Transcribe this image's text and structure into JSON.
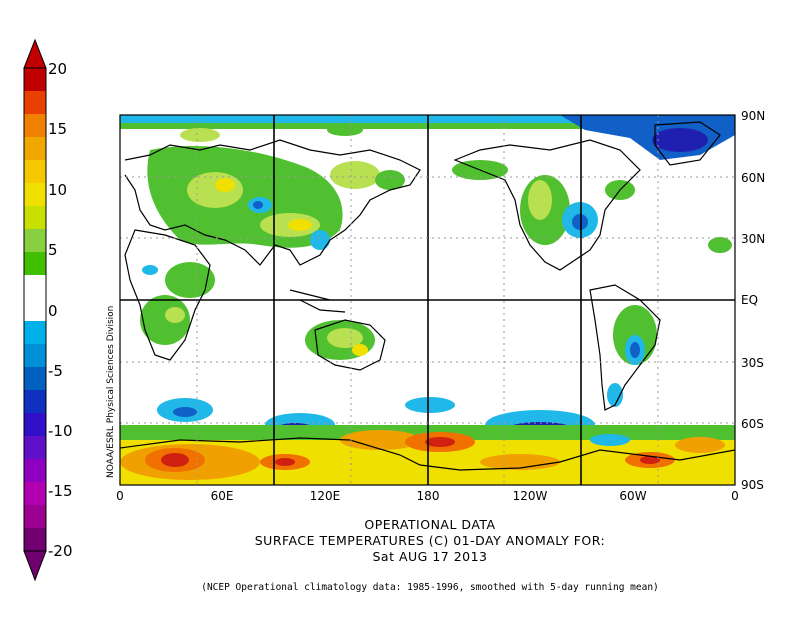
{
  "colorbar": {
    "labels": [
      "20",
      "15",
      "10",
      "5",
      "0",
      "-5",
      "-10",
      "-15",
      "-20"
    ],
    "colors": [
      "#c00000",
      "#e84000",
      "#f08000",
      "#f0a800",
      "#f5c800",
      "#f0e000",
      "#c8e000",
      "#88d040",
      "#40c000",
      "#ffffff",
      "#ffffff",
      "#00b0e8",
      "#0090d8",
      "#0060c0",
      "#1030c0",
      "#3010c8",
      "#6010c8",
      "#9000c0",
      "#b000b0",
      "#9c0090",
      "#700070"
    ]
  },
  "map": {
    "lat_labels": [
      "90N",
      "60N",
      "30N",
      "EQ",
      "30S",
      "60S",
      "90S"
    ],
    "lon_labels": [
      "0",
      "60E",
      "120E",
      "180",
      "120W",
      "60W",
      "0"
    ],
    "side_label": "NOAA/ESRL Physical Sciences Division",
    "palette": {
      "red": "#d02010",
      "orange": "#f07000",
      "amber": "#f0a000",
      "yellow": "#f0e000",
      "lightgreen": "#b8e050",
      "green": "#50c030",
      "cyan": "#20b8e8",
      "blue": "#1060c8",
      "darkblue": "#2020b0",
      "land": "#000000"
    }
  },
  "title": {
    "line1": "OPERATIONAL DATA",
    "line2": "SURFACE TEMPERATURES (C)   01-DAY ANOMALY FOR:",
    "line3": "Sat AUG 17 2013"
  },
  "footnote": "(NCEP Operational climatology data: 1985-1996, smoothed with 5-day running mean)"
}
